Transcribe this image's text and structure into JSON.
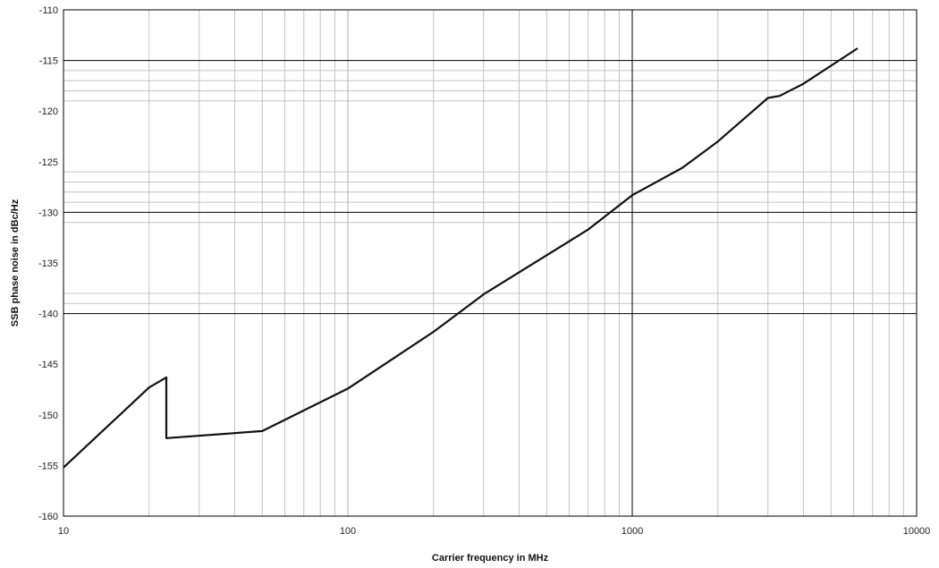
{
  "chart_data": {
    "type": "line",
    "title": "",
    "xlabel": "Carrier frequency in MHz",
    "ylabel": "SSB phase noise in dBc/Hz",
    "x_scale": "log",
    "xlim": [
      10,
      10000
    ],
    "ylim": [
      -160,
      -110
    ],
    "x_ticks": [
      10,
      100,
      1000,
      10000
    ],
    "x_tick_labels": [
      "10",
      "100",
      "1000",
      "10000"
    ],
    "y_ticks": [
      -110,
      -115,
      -120,
      -125,
      -130,
      -135,
      -140,
      -145,
      -150,
      -155,
      -160
    ],
    "y_tick_labels": [
      "-110",
      "-115",
      "-120",
      "-125",
      "-130",
      "-135",
      "-140",
      "-145",
      "-150",
      "-155",
      "-160"
    ],
    "grid": true,
    "legend": "none",
    "line_color": "#111111",
    "series": [
      {
        "points": [
          [
            10,
            -155.2
          ],
          [
            20,
            -147.3
          ],
          [
            23,
            -146.3
          ],
          [
            23,
            -152.3
          ],
          [
            50,
            -151.6
          ],
          [
            100,
            -147.4
          ],
          [
            200,
            -141.8
          ],
          [
            300,
            -138.1
          ],
          [
            700,
            -131.7
          ],
          [
            1000,
            -128.3
          ],
          [
            1500,
            -125.6
          ],
          [
            2000,
            -123.0
          ],
          [
            3000,
            -118.7
          ],
          [
            3300,
            -118.5
          ],
          [
            4000,
            -117.3
          ],
          [
            6200,
            -113.8
          ]
        ]
      }
    ]
  }
}
